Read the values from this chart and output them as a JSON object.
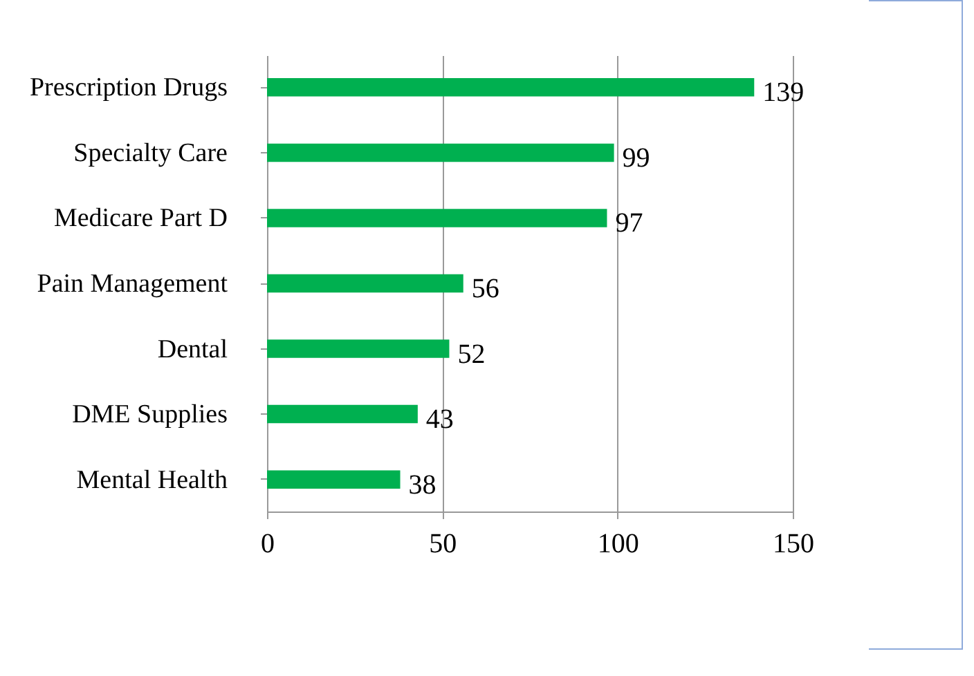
{
  "chart_data": {
    "type": "bar",
    "orientation": "horizontal",
    "categories": [
      "Prescription Drugs",
      "Specialty Care",
      "Medicare Part D",
      "Pain Management",
      "Dental",
      "DME Supplies",
      "Mental Health"
    ],
    "values": [
      139,
      99,
      97,
      56,
      52,
      43,
      38
    ],
    "color": "#00b050",
    "xlim": [
      0,
      150
    ],
    "xticks": [
      0,
      50,
      100,
      150
    ],
    "grid": "x",
    "data_labels": true
  }
}
